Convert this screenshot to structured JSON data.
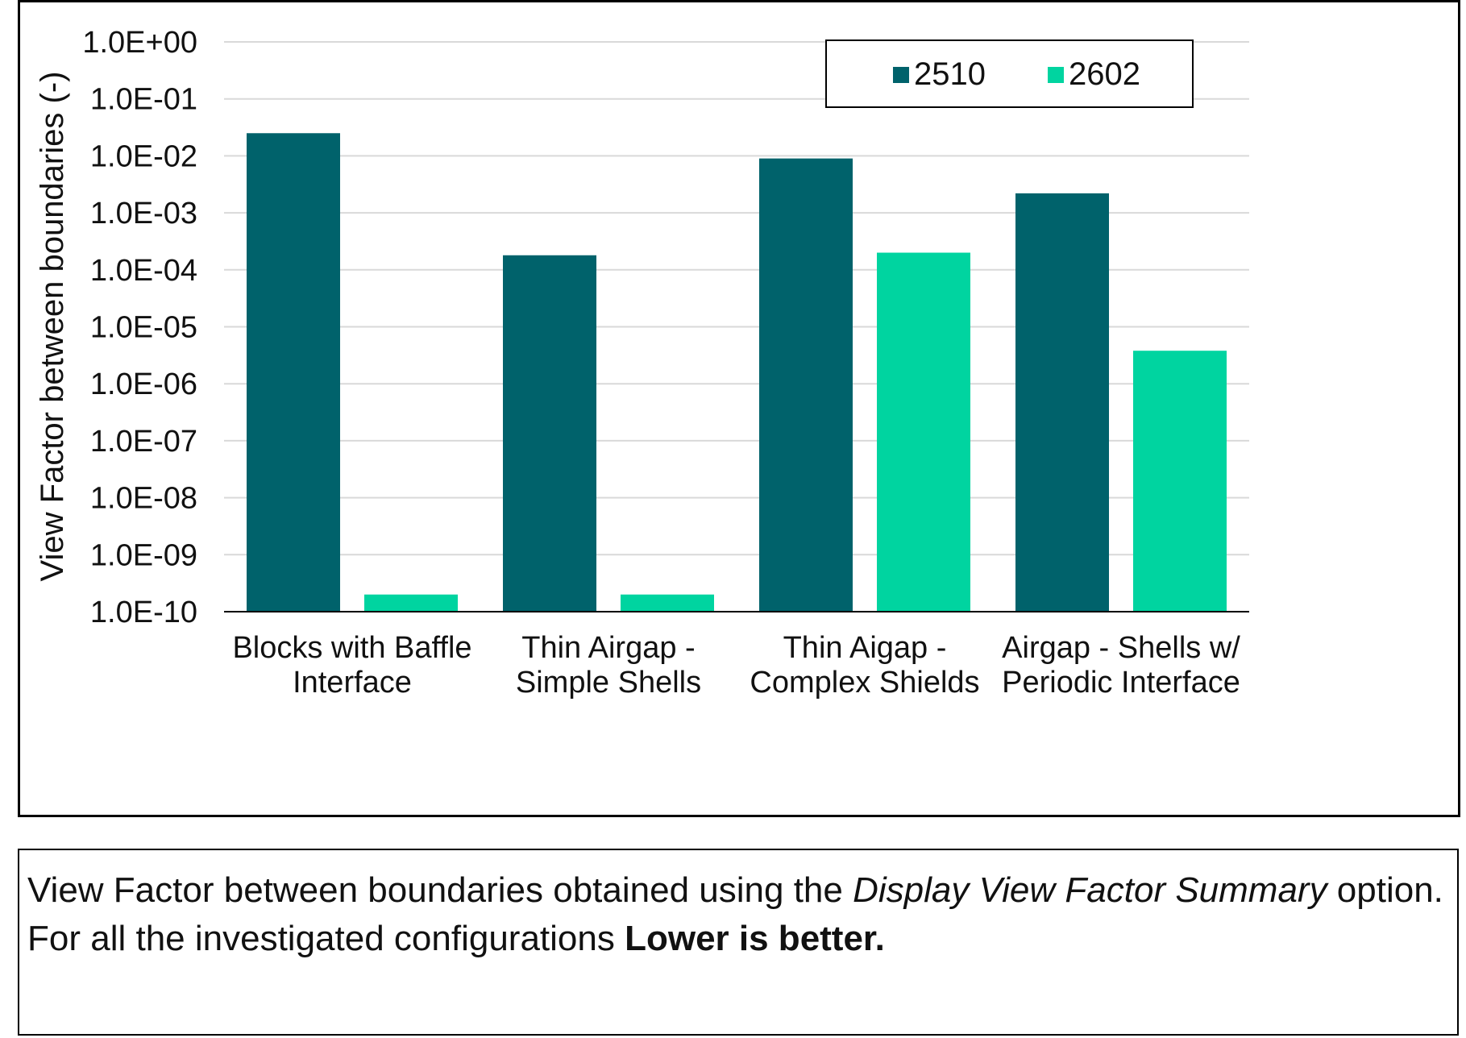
{
  "colors": {
    "series_2510": "#00626b",
    "series_2602": "#00d4a0",
    "grid": "#d9d9d9",
    "axis": "#000000"
  },
  "chart_data": {
    "type": "bar",
    "yscale": "log",
    "ylim": [
      1e-10,
      1
    ],
    "ylabel": "View Factor  between boundaries (-)",
    "yticks": [
      {
        "value": 1.0,
        "label": "1.0E+00"
      },
      {
        "value": 0.1,
        "label": "1.0E-01"
      },
      {
        "value": 0.01,
        "label": "1.0E-02"
      },
      {
        "value": 0.001,
        "label": "1.0E-03"
      },
      {
        "value": 0.0001,
        "label": "1.0E-04"
      },
      {
        "value": 1e-05,
        "label": "1.0E-05"
      },
      {
        "value": 1e-06,
        "label": "1.0E-06"
      },
      {
        "value": 1e-07,
        "label": "1.0E-07"
      },
      {
        "value": 1e-08,
        "label": "1.0E-08"
      },
      {
        "value": 1e-09,
        "label": "1.0E-09"
      },
      {
        "value": 1e-10,
        "label": "1.0E-10"
      }
    ],
    "categories": [
      [
        "Blocks with Baffle",
        "Interface"
      ],
      [
        "Thin Airgap -",
        "Simple Shells"
      ],
      [
        "Thin Aigap -",
        "Complex Shields"
      ],
      [
        "Airgap -  Shells w/",
        "Periodic Interface"
      ]
    ],
    "series": [
      {
        "name": "2510",
        "values": [
          0.025,
          0.00018,
          0.009,
          0.0022
        ]
      },
      {
        "name": "2602",
        "values": [
          2e-10,
          2e-10,
          0.0002,
          3.8e-06
        ]
      }
    ],
    "legend": {
      "position": "top-right"
    },
    "grid": true
  },
  "caption": {
    "line1_prefix": "View Factor between boundaries obtained using the ",
    "line1_italic": "Display View Factor Summary",
    "line1_suffix": " option.",
    "line2_prefix": "For all the investigated configurations ",
    "line2_bold": "Lower is better."
  }
}
